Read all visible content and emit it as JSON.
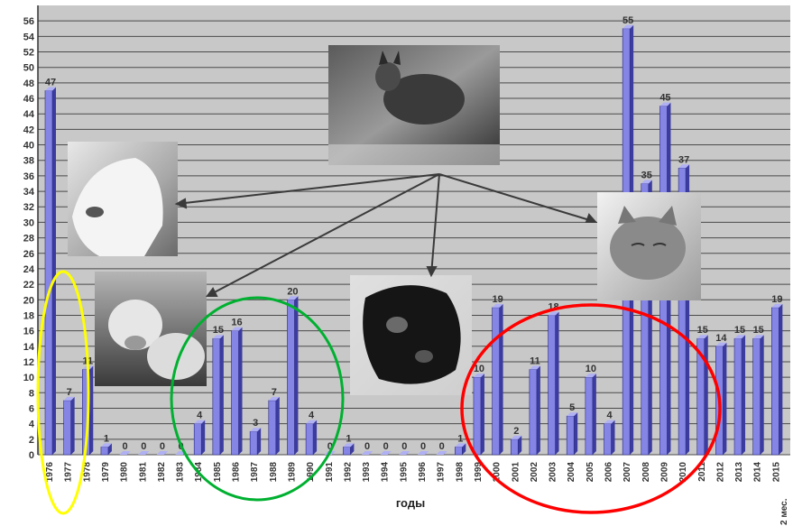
{
  "chart_data": {
    "type": "bar",
    "title": "",
    "xlabel": "годы",
    "ylabel": "",
    "ylim": [
      0,
      58
    ],
    "y_ticks": [
      0,
      2,
      4,
      6,
      8,
      10,
      12,
      14,
      16,
      18,
      20,
      22,
      24,
      26,
      28,
      30,
      32,
      34,
      36,
      38,
      40,
      42,
      44,
      46,
      48,
      50,
      52,
      54,
      56
    ],
    "grid": true,
    "categories": [
      "1976",
      "1977",
      "1978",
      "1979",
      "1980",
      "1981",
      "1982",
      "1983",
      "1984",
      "1985",
      "1986",
      "1987",
      "1988",
      "1989",
      "1990",
      "1991",
      "1992",
      "1993",
      "1994",
      "1995",
      "1996",
      "1997",
      "1998",
      "1999",
      "2000",
      "2001",
      "2002",
      "2003",
      "2004",
      "2005",
      "2006",
      "2007",
      "2008",
      "2009",
      "2010",
      "2011",
      "2012",
      "2013",
      "2014",
      "2015"
    ],
    "x_tick_labels": [
      "1976",
      "1977",
      "1978",
      "1979",
      "1980",
      "1981",
      "1982",
      "1983",
      "1984",
      "1985",
      "1986",
      "1987",
      "1988",
      "1989",
      "1990",
      "1991",
      "1992",
      "1993",
      "1994",
      "1995",
      "1996",
      "1997",
      "1998",
      "1999",
      "2000",
      "2001",
      "2002",
      "2003",
      "2004",
      "2005",
      "2006",
      "2007",
      "2008",
      "2009",
      "2010",
      "2011",
      "2012",
      "2013",
      "2014",
      "2015"
    ],
    "values": [
      47,
      7,
      11,
      1,
      0,
      0,
      0,
      0,
      4,
      15,
      16,
      3,
      7,
      20,
      4,
      0,
      1,
      0,
      0,
      0,
      0,
      0,
      1,
      10,
      19,
      2,
      11,
      18,
      5,
      10,
      4,
      55,
      35,
      45,
      37,
      15,
      14,
      15,
      15,
      19
    ],
    "data_labels": [
      "47",
      "7",
      "11",
      "1",
      "0",
      "0",
      "0",
      "0",
      "4",
      "15",
      "16",
      "3",
      "7",
      "20",
      "4",
      "0",
      "1",
      "0",
      "0",
      "0",
      "0",
      "0",
      "1",
      "10",
      "19",
      "2",
      "11",
      "18",
      "5",
      "10",
      "4",
      "55",
      "35",
      "45",
      "37",
      "15",
      "14",
      "15",
      "15",
      "19"
    ],
    "annotations": [
      "2 мес."
    ],
    "colors": {
      "bar_front": "#8585e6",
      "bar_side": "#3c3ca0",
      "bar_top": "#b0b0f5",
      "plot_bg": "#c8c8c8",
      "grid": "#4a4a4a",
      "highlight_yellow": "#ffff00",
      "highlight_green": "#00b030",
      "highlight_red": "#ff0000"
    },
    "photos": [
      "fox-photo",
      "horse-photo",
      "cow-photo",
      "dog-photo",
      "kitten-photo"
    ]
  }
}
